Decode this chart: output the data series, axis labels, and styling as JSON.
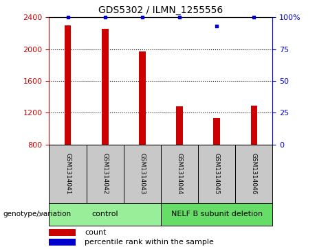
{
  "title": "GDS5302 / ILMN_1255556",
  "samples": [
    "GSM1314041",
    "GSM1314042",
    "GSM1314043",
    "GSM1314044",
    "GSM1314045",
    "GSM1314046"
  ],
  "counts": [
    2300,
    2260,
    1970,
    1280,
    1130,
    1285
  ],
  "percentiles": [
    100,
    100,
    100,
    100,
    93,
    100
  ],
  "ylim_left": [
    800,
    2400
  ],
  "ylim_right": [
    0,
    100
  ],
  "yticks_left": [
    800,
    1200,
    1600,
    2000,
    2400
  ],
  "yticks_right": [
    0,
    25,
    50,
    75,
    100
  ],
  "bar_color": "#cc0000",
  "dot_color": "#0000cc",
  "bar_width": 0.18,
  "groups": [
    {
      "label": "control",
      "indices": [
        0,
        1,
        2
      ],
      "color": "#99ee99"
    },
    {
      "label": "NELF B subunit deletion",
      "indices": [
        3,
        4,
        5
      ],
      "color": "#66dd66"
    }
  ],
  "group_label": "genotype/variation",
  "legend_count_label": "count",
  "legend_percentile_label": "percentile rank within the sample",
  "grid_yticks": [
    1200,
    1600,
    2000
  ],
  "bg_color": "#c8c8c8",
  "left_tick_color": "#cc0000",
  "right_tick_color": "#0000cc",
  "right_tick_labels": [
    "0",
    "25",
    "50",
    "75",
    "100%"
  ]
}
